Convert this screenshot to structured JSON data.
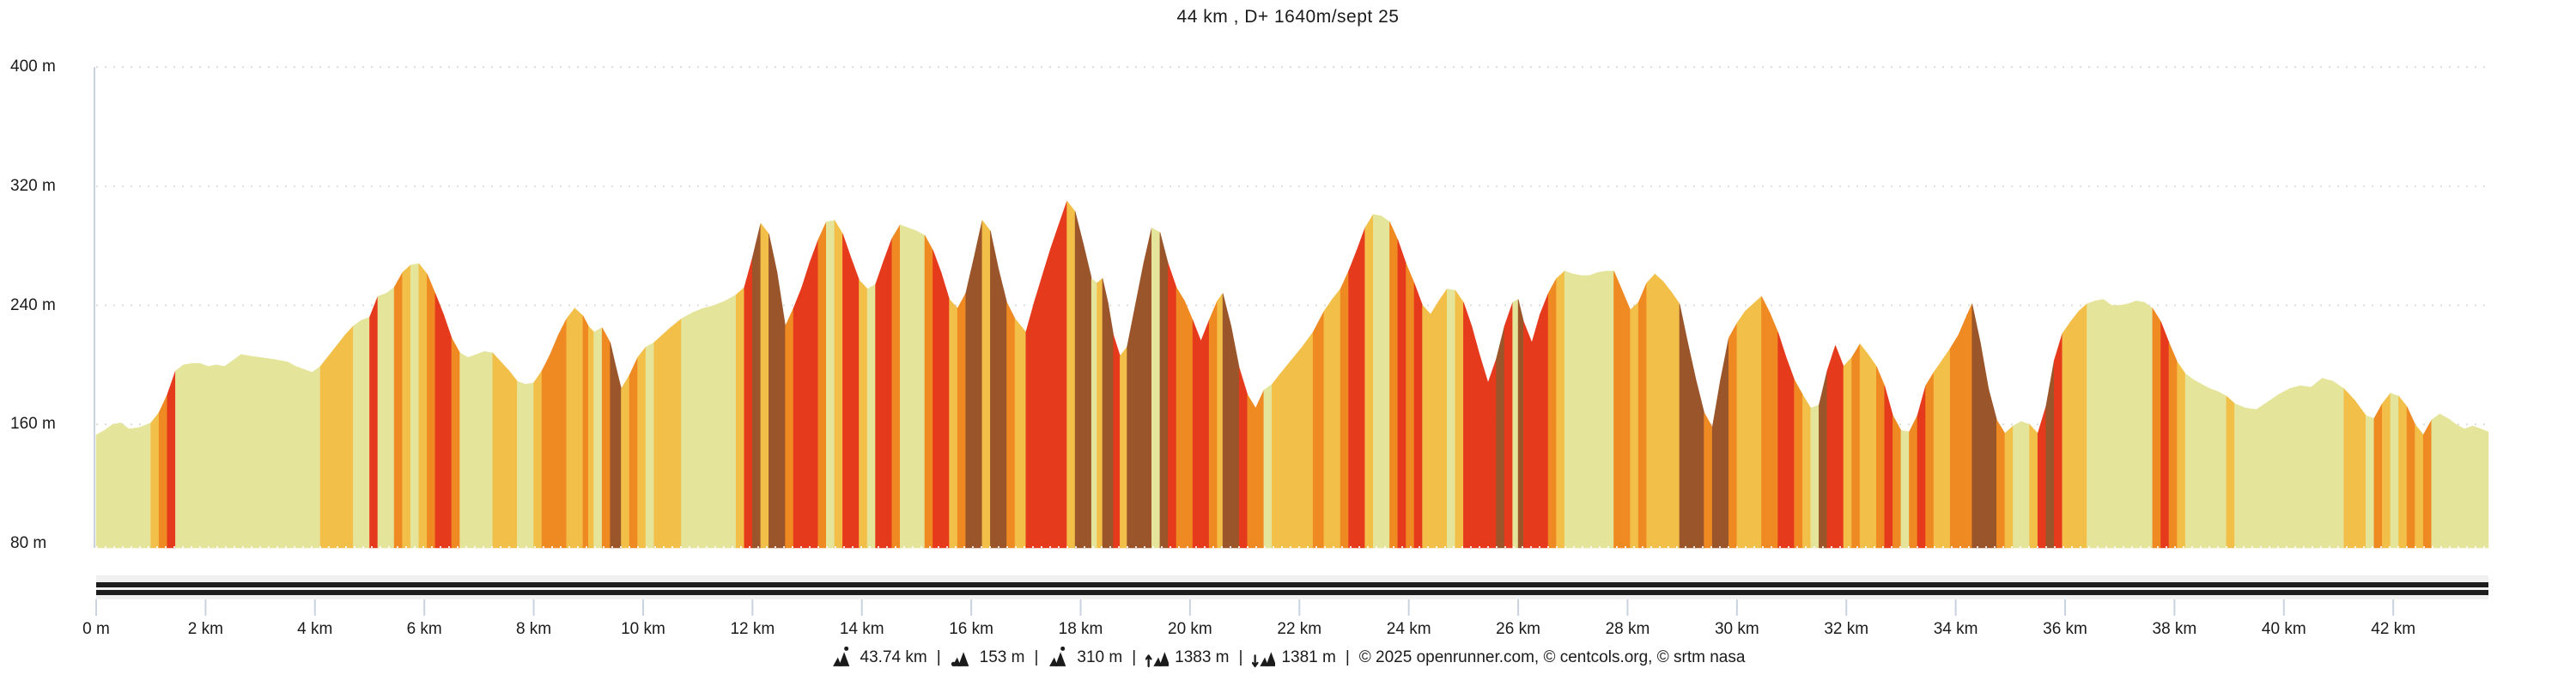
{
  "title": "44 km , D+ 1640m/sept 25",
  "y_axis": {
    "labels": [
      "400 m",
      "320 m",
      "240 m",
      "160 m",
      "80 m"
    ],
    "values_m": [
      400,
      320,
      240,
      160,
      80
    ]
  },
  "x_axis": {
    "labels": [
      "0 m",
      "2 km",
      "4 km",
      "6 km",
      "8 km",
      "10 km",
      "12 km",
      "14 km",
      "16 km",
      "18 km",
      "20 km",
      "22 km",
      "24 km",
      "26 km",
      "28 km",
      "30 km",
      "32 km",
      "34 km",
      "36 km",
      "38 km",
      "40 km",
      "42 km"
    ],
    "values_km": [
      0,
      2,
      4,
      6,
      8,
      10,
      12,
      14,
      16,
      18,
      20,
      22,
      24,
      26,
      28,
      30,
      32,
      34,
      36,
      38,
      40,
      42
    ]
  },
  "footer": {
    "separator": "|",
    "stats": [
      {
        "icon": "distance-icon",
        "value": "43.74 km"
      },
      {
        "icon": "min-altitude-icon",
        "value": "153 m"
      },
      {
        "icon": "max-altitude-icon",
        "value": "310 m"
      },
      {
        "icon": "elevation-gain-icon",
        "value": "1383 m"
      },
      {
        "icon": "elevation-loss-icon",
        "value": "1381 m"
      }
    ],
    "copyright": "© 2025 openrunner.com, © centcols.org, © srtm nasa"
  },
  "colors": {
    "text": "#1b1b1b",
    "gridline": "#dcdcdc",
    "axis_line": "#c9d3e0",
    "tick_line": "#c9d3e0",
    "track_bar_bg": "#f0f0f0",
    "track_bar_line": "#1c1c1c",
    "background": "#ffffff"
  },
  "chart_data": {
    "type": "area",
    "title": "44 km , D+ 1640m/sept 25",
    "x_unit": "km",
    "y_unit": "m",
    "xlim_km": [
      0,
      43.74
    ],
    "ylim_m": [
      80,
      400
    ],
    "grid": "dotted-horizontal",
    "total_distance_km": 43.74,
    "min_altitude_m": 153,
    "max_altitude_m": 310,
    "elevation_gain_m": 1383,
    "elevation_loss_m": 1381,
    "gradient_colors": {
      "flat": "#e5e49b",
      "gentle": "#f2bf49",
      "moderate": "#ef8a23",
      "steep": "#e63a1d",
      "very_steep": "#9a552a"
    },
    "gradient_thresholds_pct": [
      3,
      6,
      9,
      13.5
    ],
    "points": [
      [
        0,
        153
      ],
      [
        0.15,
        156
      ],
      [
        0.3,
        160
      ],
      [
        0.45,
        161
      ],
      [
        0.6,
        157
      ],
      [
        0.8,
        158
      ],
      [
        1.0,
        161
      ],
      [
        1.15,
        168
      ],
      [
        1.3,
        180
      ],
      [
        1.45,
        196
      ],
      [
        1.6,
        200
      ],
      [
        1.75,
        201
      ],
      [
        1.9,
        201
      ],
      [
        2.05,
        199
      ],
      [
        2.2,
        200
      ],
      [
        2.35,
        199
      ],
      [
        2.5,
        203
      ],
      [
        2.65,
        207
      ],
      [
        2.8,
        206
      ],
      [
        3.0,
        205
      ],
      [
        3.2,
        204
      ],
      [
        3.35,
        203
      ],
      [
        3.5,
        202
      ],
      [
        3.65,
        199
      ],
      [
        3.8,
        197
      ],
      [
        3.95,
        195
      ],
      [
        4.1,
        199
      ],
      [
        4.25,
        206
      ],
      [
        4.4,
        213
      ],
      [
        4.55,
        220
      ],
      [
        4.7,
        226
      ],
      [
        4.85,
        230
      ],
      [
        5.0,
        232
      ],
      [
        5.15,
        246
      ],
      [
        5.3,
        248
      ],
      [
        5.45,
        252
      ],
      [
        5.6,
        262
      ],
      [
        5.75,
        267
      ],
      [
        5.9,
        268
      ],
      [
        6.05,
        261
      ],
      [
        6.2,
        248
      ],
      [
        6.35,
        234
      ],
      [
        6.5,
        218
      ],
      [
        6.65,
        208
      ],
      [
        6.8,
        205
      ],
      [
        6.95,
        207
      ],
      [
        7.1,
        209
      ],
      [
        7.25,
        208
      ],
      [
        7.4,
        202
      ],
      [
        7.55,
        196
      ],
      [
        7.7,
        189
      ],
      [
        7.85,
        187
      ],
      [
        8.0,
        188
      ],
      [
        8.15,
        196
      ],
      [
        8.3,
        207
      ],
      [
        8.45,
        220
      ],
      [
        8.6,
        231
      ],
      [
        8.75,
        238
      ],
      [
        8.9,
        233
      ],
      [
        9.0,
        226
      ],
      [
        9.1,
        222
      ],
      [
        9.25,
        225
      ],
      [
        9.4,
        215
      ],
      [
        9.5,
        199
      ],
      [
        9.6,
        184
      ],
      [
        9.75,
        193
      ],
      [
        9.9,
        205
      ],
      [
        10.05,
        212
      ],
      [
        10.2,
        215
      ],
      [
        10.35,
        220
      ],
      [
        10.5,
        225
      ],
      [
        10.7,
        231
      ],
      [
        10.9,
        235
      ],
      [
        11.1,
        238
      ],
      [
        11.3,
        240
      ],
      [
        11.5,
        243
      ],
      [
        11.7,
        247
      ],
      [
        11.85,
        252
      ],
      [
        12.0,
        272
      ],
      [
        12.15,
        295
      ],
      [
        12.3,
        288
      ],
      [
        12.45,
        262
      ],
      [
        12.6,
        226
      ],
      [
        12.75,
        238
      ],
      [
        12.9,
        252
      ],
      [
        13.05,
        269
      ],
      [
        13.2,
        284
      ],
      [
        13.35,
        296
      ],
      [
        13.5,
        297
      ],
      [
        13.65,
        288
      ],
      [
        13.8,
        272
      ],
      [
        13.95,
        257
      ],
      [
        14.1,
        251
      ],
      [
        14.25,
        254
      ],
      [
        14.4,
        270
      ],
      [
        14.55,
        285
      ],
      [
        14.7,
        294
      ],
      [
        14.85,
        292
      ],
      [
        15.0,
        290
      ],
      [
        15.15,
        287
      ],
      [
        15.3,
        277
      ],
      [
        15.45,
        262
      ],
      [
        15.6,
        244
      ],
      [
        15.75,
        238
      ],
      [
        15.9,
        248
      ],
      [
        16.05,
        272
      ],
      [
        16.2,
        297
      ],
      [
        16.35,
        290
      ],
      [
        16.5,
        264
      ],
      [
        16.65,
        242
      ],
      [
        16.8,
        231
      ],
      [
        17.0,
        222
      ],
      [
        17.15,
        242
      ],
      [
        17.3,
        260
      ],
      [
        17.45,
        278
      ],
      [
        17.6,
        294
      ],
      [
        17.75,
        310
      ],
      [
        17.9,
        303
      ],
      [
        18.05,
        281
      ],
      [
        18.2,
        258
      ],
      [
        18.3,
        255
      ],
      [
        18.4,
        258
      ],
      [
        18.5,
        242
      ],
      [
        18.6,
        220
      ],
      [
        18.72,
        206
      ],
      [
        18.85,
        212
      ],
      [
        19.0,
        240
      ],
      [
        19.15,
        268
      ],
      [
        19.3,
        292
      ],
      [
        19.45,
        289
      ],
      [
        19.6,
        268
      ],
      [
        19.75,
        252
      ],
      [
        19.9,
        243
      ],
      [
        20.05,
        230
      ],
      [
        20.2,
        216
      ],
      [
        20.35,
        230
      ],
      [
        20.5,
        243
      ],
      [
        20.6,
        248
      ],
      [
        20.75,
        226
      ],
      [
        20.9,
        198
      ],
      [
        21.05,
        180
      ],
      [
        21.2,
        171
      ],
      [
        21.35,
        183
      ],
      [
        21.5,
        187
      ],
      [
        21.65,
        194
      ],
      [
        21.85,
        203
      ],
      [
        22.05,
        212
      ],
      [
        22.25,
        222
      ],
      [
        22.45,
        236
      ],
      [
        22.6,
        244
      ],
      [
        22.75,
        251
      ],
      [
        22.9,
        263
      ],
      [
        23.05,
        277
      ],
      [
        23.2,
        292
      ],
      [
        23.35,
        301
      ],
      [
        23.5,
        300
      ],
      [
        23.65,
        296
      ],
      [
        23.8,
        284
      ],
      [
        23.95,
        268
      ],
      [
        24.1,
        255
      ],
      [
        24.25,
        240
      ],
      [
        24.4,
        234
      ],
      [
        24.55,
        243
      ],
      [
        24.7,
        251
      ],
      [
        24.85,
        250
      ],
      [
        25.0,
        242
      ],
      [
        25.15,
        226
      ],
      [
        25.3,
        206
      ],
      [
        25.45,
        188
      ],
      [
        25.6,
        204
      ],
      [
        25.75,
        226
      ],
      [
        25.9,
        242
      ],
      [
        26.0,
        244
      ],
      [
        26.1,
        229
      ],
      [
        26.25,
        215
      ],
      [
        26.4,
        234
      ],
      [
        26.55,
        248
      ],
      [
        26.7,
        258
      ],
      [
        26.85,
        263
      ],
      [
        27.0,
        261
      ],
      [
        27.15,
        260
      ],
      [
        27.3,
        260
      ],
      [
        27.45,
        262
      ],
      [
        27.6,
        263
      ],
      [
        27.75,
        263
      ],
      [
        27.9,
        250
      ],
      [
        28.05,
        237
      ],
      [
        28.2,
        242
      ],
      [
        28.35,
        255
      ],
      [
        28.5,
        261
      ],
      [
        28.65,
        256
      ],
      [
        28.8,
        249
      ],
      [
        28.95,
        241
      ],
      [
        29.1,
        215
      ],
      [
        29.25,
        190
      ],
      [
        29.4,
        168
      ],
      [
        29.55,
        158
      ],
      [
        29.7,
        190
      ],
      [
        29.85,
        218
      ],
      [
        30.0,
        228
      ],
      [
        30.15,
        236
      ],
      [
        30.3,
        241
      ],
      [
        30.45,
        246
      ],
      [
        30.6,
        235
      ],
      [
        30.75,
        222
      ],
      [
        30.9,
        205
      ],
      [
        31.05,
        190
      ],
      [
        31.2,
        180
      ],
      [
        31.35,
        171
      ],
      [
        31.5,
        173
      ],
      [
        31.65,
        196
      ],
      [
        31.8,
        213
      ],
      [
        31.95,
        199
      ],
      [
        32.1,
        205
      ],
      [
        32.25,
        214
      ],
      [
        32.4,
        207
      ],
      [
        32.55,
        199
      ],
      [
        32.7,
        186
      ],
      [
        32.85,
        166
      ],
      [
        33.0,
        156
      ],
      [
        33.15,
        155
      ],
      [
        33.3,
        166
      ],
      [
        33.45,
        186
      ],
      [
        33.6,
        195
      ],
      [
        33.75,
        203
      ],
      [
        33.9,
        211
      ],
      [
        34.05,
        220
      ],
      [
        34.2,
        233
      ],
      [
        34.3,
        241
      ],
      [
        34.45,
        215
      ],
      [
        34.6,
        184
      ],
      [
        34.75,
        163
      ],
      [
        34.9,
        154
      ],
      [
        35.05,
        159
      ],
      [
        35.2,
        162
      ],
      [
        35.35,
        160
      ],
      [
        35.5,
        154
      ],
      [
        35.65,
        172
      ],
      [
        35.8,
        203
      ],
      [
        35.95,
        221
      ],
      [
        36.1,
        229
      ],
      [
        36.25,
        236
      ],
      [
        36.4,
        241
      ],
      [
        36.55,
        243
      ],
      [
        36.7,
        244
      ],
      [
        36.85,
        240
      ],
      [
        37.0,
        240
      ],
      [
        37.15,
        241
      ],
      [
        37.3,
        243
      ],
      [
        37.45,
        242
      ],
      [
        37.6,
        238
      ],
      [
        37.75,
        229
      ],
      [
        37.9,
        215
      ],
      [
        38.05,
        202
      ],
      [
        38.2,
        194
      ],
      [
        38.35,
        190
      ],
      [
        38.5,
        187
      ],
      [
        38.65,
        184
      ],
      [
        38.8,
        182
      ],
      [
        38.95,
        179
      ],
      [
        39.1,
        174
      ],
      [
        39.3,
        171
      ],
      [
        39.5,
        170
      ],
      [
        39.7,
        175
      ],
      [
        39.9,
        180
      ],
      [
        40.1,
        184
      ],
      [
        40.3,
        186
      ],
      [
        40.5,
        185
      ],
      [
        40.7,
        191
      ],
      [
        40.9,
        189
      ],
      [
        41.1,
        184
      ],
      [
        41.3,
        176
      ],
      [
        41.5,
        166
      ],
      [
        41.65,
        164
      ],
      [
        41.8,
        174
      ],
      [
        41.95,
        181
      ],
      [
        42.1,
        179
      ],
      [
        42.25,
        172
      ],
      [
        42.4,
        160
      ],
      [
        42.55,
        153
      ],
      [
        42.7,
        163
      ],
      [
        42.85,
        167
      ],
      [
        43.0,
        164
      ],
      [
        43.15,
        160
      ],
      [
        43.3,
        157
      ],
      [
        43.45,
        159
      ],
      [
        43.6,
        157
      ],
      [
        43.74,
        155
      ]
    ]
  }
}
